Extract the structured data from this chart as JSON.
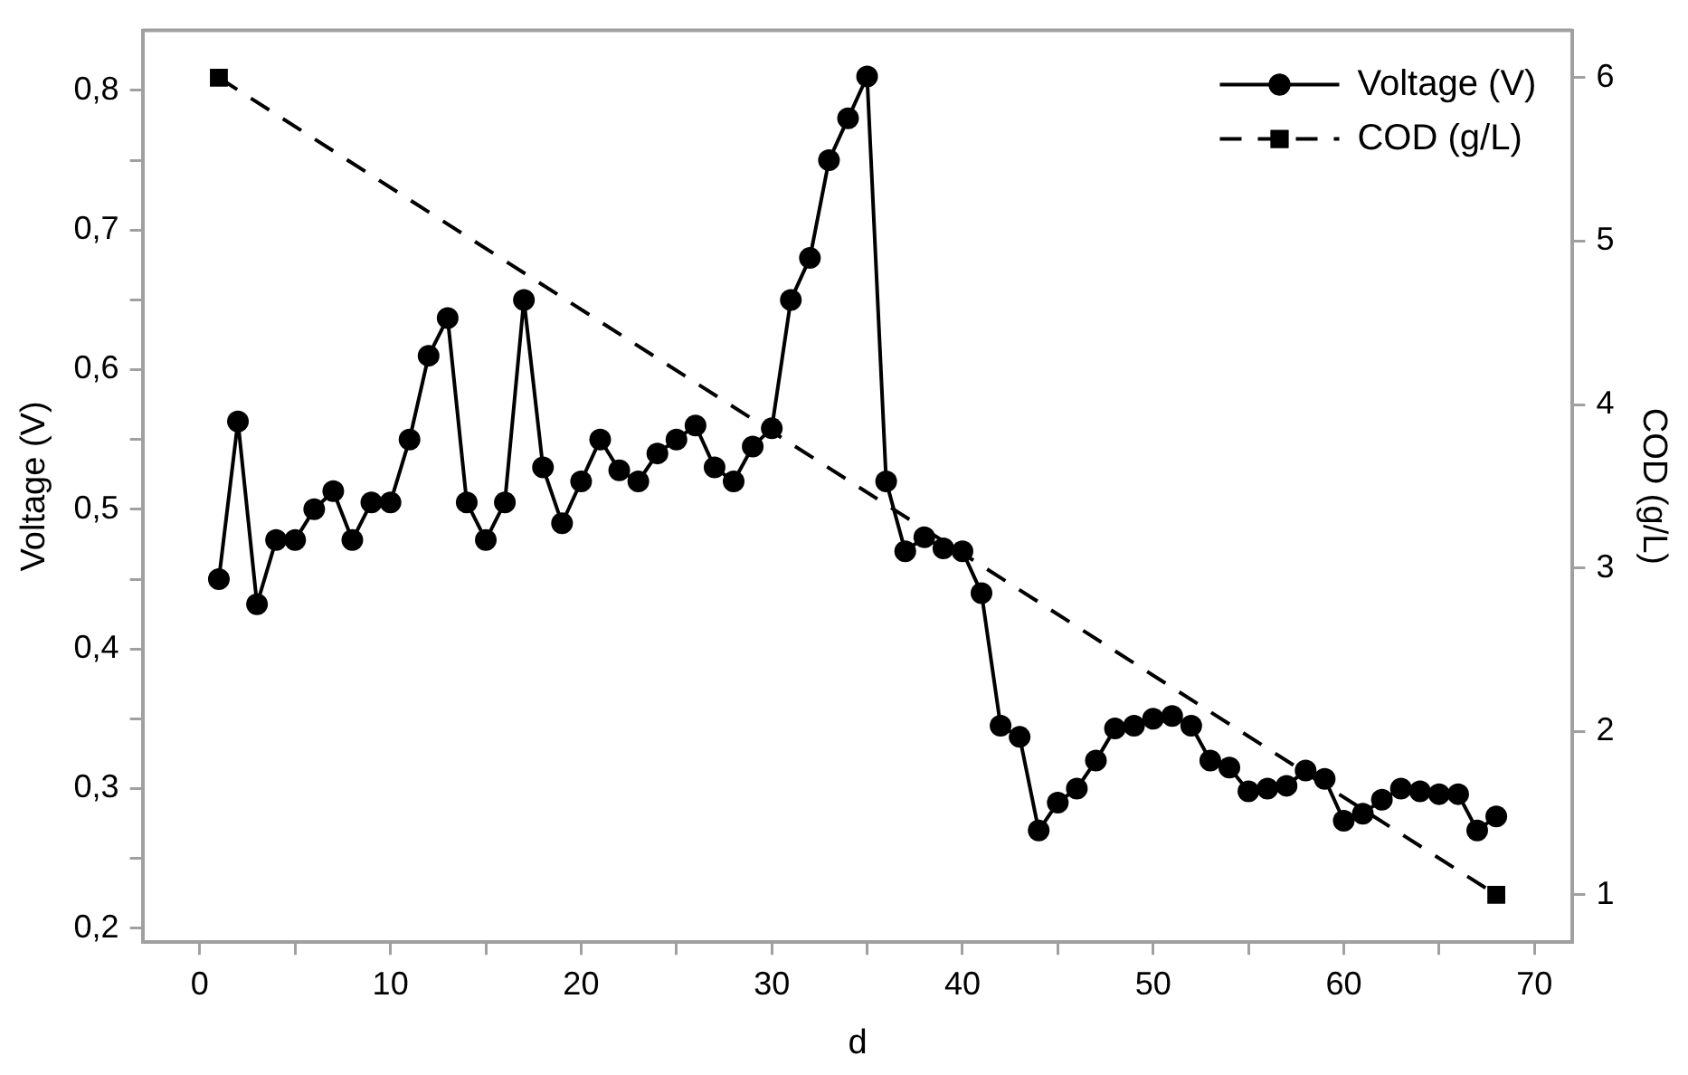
{
  "chart_data": {
    "type": "line",
    "xlabel": "d",
    "ylabel": "Voltage (V)",
    "y2label": "COD (g/L)",
    "xlim": [
      -3,
      72
    ],
    "xticks": [
      0,
      {
        "value": 5,
        "label": null
      },
      10,
      {
        "value": 15,
        "label": null
      },
      20,
      {
        "value": 25,
        "label": null
      },
      30,
      {
        "value": 35,
        "label": null
      },
      40,
      {
        "value": 45,
        "label": null
      },
      50,
      {
        "value": 55,
        "label": null
      },
      60,
      {
        "value": 65,
        "label": null
      },
      70
    ],
    "ylim": [
      0.19,
      0.843
    ],
    "yticks": [
      {
        "value": 0.2,
        "label": "0,2"
      },
      {
        "value": 0.25,
        "label": null
      },
      {
        "value": 0.3,
        "label": "0,3"
      },
      {
        "value": 0.35,
        "label": null
      },
      {
        "value": 0.4,
        "label": "0,4"
      },
      {
        "value": 0.45,
        "label": null
      },
      {
        "value": 0.5,
        "label": "0,5"
      },
      {
        "value": 0.55,
        "label": null
      },
      {
        "value": 0.6,
        "label": "0,6"
      },
      {
        "value": 0.65,
        "label": null
      },
      {
        "value": 0.7,
        "label": "0,7"
      },
      {
        "value": 0.75,
        "label": null
      },
      {
        "value": 0.8,
        "label": "0,8"
      }
    ],
    "y2lim": [
      0.71,
      6.29
    ],
    "y2ticks": [
      1,
      2,
      3,
      4,
      5,
      6
    ],
    "grid": false,
    "legend": "top right",
    "series": [
      {
        "name": "Voltage (V)",
        "color": "#000000",
        "marker": "circle",
        "line_style": "solid",
        "axis": "y",
        "x": [
          1,
          2,
          3,
          4,
          5,
          6,
          7,
          8,
          9,
          10,
          11,
          12,
          13,
          14,
          15,
          16,
          17,
          18,
          19,
          20,
          21,
          22,
          23,
          24,
          25,
          26,
          27,
          28,
          29,
          30,
          31,
          32,
          33,
          34,
          35,
          36,
          37,
          38,
          39,
          40,
          41,
          42,
          43,
          44,
          45,
          46,
          47,
          48,
          49,
          50,
          51,
          52,
          53,
          54,
          55,
          56,
          57,
          58,
          59,
          60,
          61,
          62,
          63,
          64,
          65,
          66,
          67,
          68
        ],
        "values": [
          0.45,
          0.563,
          0.432,
          0.478,
          0.478,
          0.5,
          0.513,
          0.478,
          0.505,
          0.505,
          0.55,
          0.61,
          0.637,
          0.505,
          0.478,
          0.505,
          0.65,
          0.53,
          0.49,
          0.52,
          0.55,
          0.528,
          0.52,
          0.54,
          0.55,
          0.56,
          0.53,
          0.52,
          0.545,
          0.558,
          0.65,
          0.68,
          0.75,
          0.78,
          0.81,
          0.52,
          0.47,
          0.48,
          0.472,
          0.47,
          0.44,
          0.345,
          0.337,
          0.27,
          0.29,
          0.3,
          0.32,
          0.343,
          0.345,
          0.35,
          0.352,
          0.345,
          0.32,
          0.315,
          0.298,
          0.3,
          0.302,
          0.313,
          0.307,
          0.277,
          0.282,
          0.292,
          0.3,
          0.298,
          0.296,
          0.296,
          0.27,
          0.28
        ]
      },
      {
        "name": "COD (g/L)",
        "color": "#000000",
        "marker": "square",
        "line_style": "dashed",
        "axis": "y2",
        "x": [
          1,
          68
        ],
        "values": [
          6,
          1
        ]
      }
    ]
  }
}
